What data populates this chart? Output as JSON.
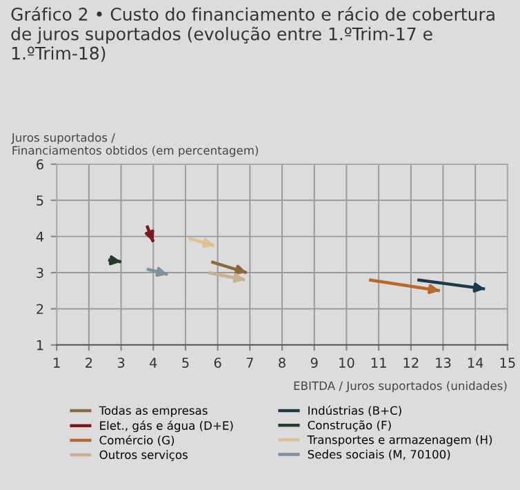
{
  "chart_data": {
    "type": "line",
    "title": "Gráfico 2 • Custo do financiamento e rácio de cobertura de juros suportados (evolução entre 1.ºTrim-17 e 1.ºTrim-18)",
    "xlabel": "EBITDA / Juros suportados (unidades)",
    "ylabel": "Juros suportados /\nFinanciamentos obtidos (em percentagem)",
    "xlim": [
      1,
      15
    ],
    "xticks": [
      1,
      2,
      3,
      4,
      5,
      6,
      7,
      8,
      9,
      10,
      11,
      12,
      13,
      14,
      15
    ],
    "ylim": [
      1,
      6
    ],
    "yticks": [
      1,
      2,
      3,
      4,
      5,
      6
    ],
    "grid": true,
    "legend": "bottom",
    "marker": "none",
    "line_style": "solid",
    "series": [
      {
        "name": "Todas as empresas",
        "color": "#8a6a3a",
        "x": [
          5.8,
          6.9
        ],
        "values": [
          3.3,
          3.0
        ]
      },
      {
        "name": "Elet., gás e água (D+E)",
        "color": "#7a1a1a",
        "x": [
          3.8,
          4.0
        ],
        "values": [
          4.3,
          3.85
        ]
      },
      {
        "name": "Comércio (G)",
        "color": "#b8682a",
        "x": [
          10.7,
          12.9
        ],
        "values": [
          2.8,
          2.5
        ]
      },
      {
        "name": "Outros serviços",
        "color": "#c8b090",
        "x": [
          5.7,
          6.85
        ],
        "values": [
          3.0,
          2.8
        ]
      },
      {
        "name": "Indústrias (B+C)",
        "color": "#1a3a4a",
        "x": [
          12.2,
          14.3
        ],
        "values": [
          2.8,
          2.55
        ]
      },
      {
        "name": "Construção (F)",
        "color": "#2a3a2a",
        "x": [
          2.6,
          3.0
        ],
        "values": [
          3.35,
          3.3
        ]
      },
      {
        "name": "Transportes e armazenagem (H)",
        "color": "#e0c090",
        "x": [
          5.1,
          5.9
        ],
        "values": [
          3.95,
          3.75
        ]
      },
      {
        "name": "Sedes sociais (M, 70100)",
        "color": "#8090a0",
        "x": [
          3.8,
          4.45
        ],
        "values": [
          3.1,
          2.95
        ]
      }
    ]
  }
}
